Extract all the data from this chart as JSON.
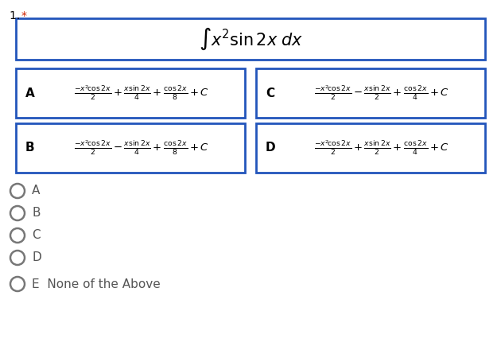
{
  "bg_color": "#ffffff",
  "border_color": "#2255bb",
  "question_num_color": "#cc2200",
  "radio_label_color": "#555555",
  "title_formula": "$\\int x^2 \\sin 2x \\; dx$",
  "option_A": "$\\frac{-x^2\\!\\cos2x}{2}+\\frac{x\\sin 2x}{4}+\\frac{\\cos 2x}{8}+C$",
  "option_B": "$\\frac{-x^2\\!\\cos2x}{2}-\\frac{x\\sin 2x}{4}+\\frac{\\cos 2x}{8}+C$",
  "option_C": "$\\frac{-x^2\\!\\cos2x}{2}-\\frac{x\\sin 2x}{2}+\\frac{\\cos 2x}{4}+C$",
  "option_D": "$\\frac{-x^2\\!\\cos2x}{2}+\\frac{x\\sin 2x}{2}+\\frac{\\cos 2x}{4}+C$",
  "fig_w": 6.3,
  "fig_h": 4.45,
  "dpi": 100
}
